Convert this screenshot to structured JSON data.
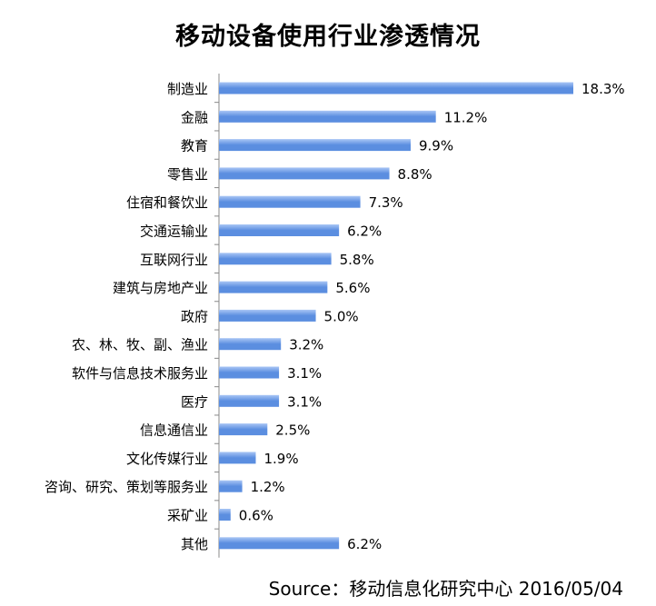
{
  "chart_data": {
    "type": "bar",
    "orientation": "horizontal",
    "title": "移动设备使用行业渗透情况",
    "categories": [
      "制造业",
      "金融",
      "教育",
      "零售业",
      "住宿和餐饮业",
      "交通运输业",
      "互联网行业",
      "建筑与房地产业",
      "政府",
      "农、林、牧、副、渔业",
      "软件与信息技术服务业",
      "医疗",
      "信息通信业",
      "文化传媒行业",
      "咨询、研究、策划等服务业",
      "采矿业",
      "其他"
    ],
    "values": [
      18.3,
      11.2,
      9.9,
      8.8,
      7.3,
      6.2,
      5.8,
      5.6,
      5.0,
      3.2,
      3.1,
      3.1,
      2.5,
      1.9,
      1.2,
      0.6,
      6.2
    ],
    "data_labels": [
      "18.3%",
      "11.2%",
      "9.9%",
      "8.8%",
      "7.3%",
      "6.2%",
      "5.8%",
      "5.6%",
      "5.0%",
      "3.2%",
      "3.1%",
      "3.1%",
      "2.5%",
      "1.9%",
      "1.2%",
      "0.6%",
      "6.2%"
    ],
    "xlabel": "",
    "ylabel": "",
    "xlim": [
      0,
      18.3
    ],
    "grid": false,
    "legend": "none",
    "bar_color": "#5b8ee0",
    "bar_color_light": "#a9c6f5",
    "axis_color": "#888888"
  },
  "source_text": "Source：移动信息化研究中心 2016/05/04"
}
